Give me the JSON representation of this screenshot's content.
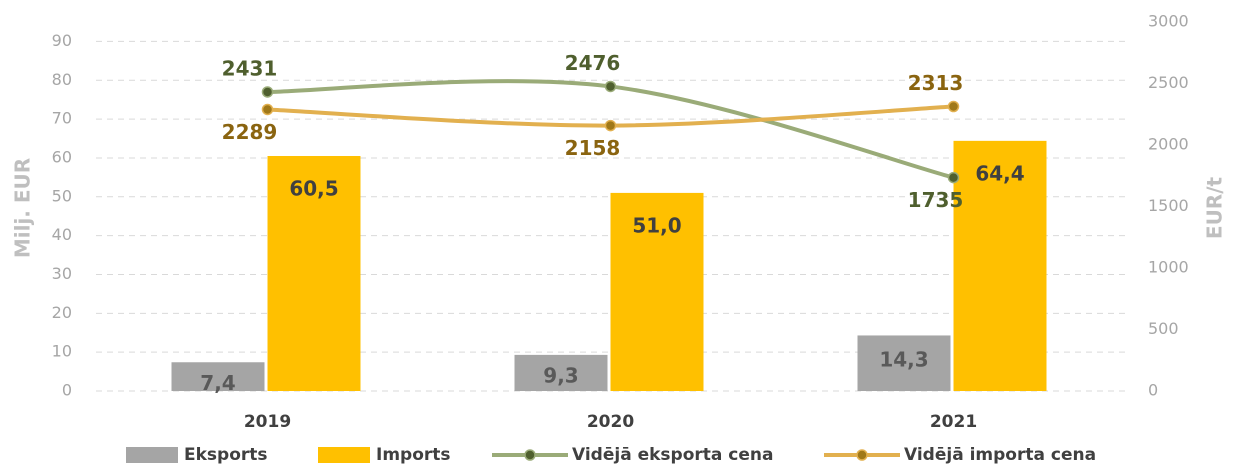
{
  "chart_data": {
    "type": "bar-line",
    "categories": [
      "2019",
      "2020",
      "2021"
    ],
    "ylabel": "Milj. EUR",
    "y2label": "EUR/t",
    "ylim": [
      0,
      95
    ],
    "yticks": [
      0,
      10,
      20,
      30,
      40,
      50,
      60,
      70,
      80,
      90
    ],
    "y2lim": [
      0,
      3000
    ],
    "y2ticks": [
      0,
      500,
      1000,
      1500,
      2000,
      2500,
      3000
    ],
    "grid": true,
    "series": [
      {
        "name": "Eksports",
        "kind": "bar",
        "color": "#a5a5a5",
        "label_color": "#595959",
        "values": [
          7.4,
          9.3,
          14.3
        ],
        "value_labels": [
          "7,4",
          "9,3",
          "14,3"
        ]
      },
      {
        "name": "Imports",
        "kind": "bar",
        "color": "#ffc000",
        "label_color": "#404040",
        "values": [
          60.5,
          51.0,
          64.4
        ],
        "value_labels": [
          "60,5",
          "51,0",
          "64,4"
        ]
      },
      {
        "name": "Vidējā eksporta cena",
        "kind": "line",
        "axis": "y2",
        "color": "#9aab78",
        "marker_color": "#4f5f2e",
        "label_color": "#4f5f2e",
        "values": [
          2431,
          2476,
          1735
        ]
      },
      {
        "name": "Vidējā importa cena",
        "kind": "line",
        "axis": "y2",
        "color": "#e2b04f",
        "marker_color": "#a07818",
        "label_color": "#8a6410",
        "values": [
          2289,
          2158,
          2313
        ]
      }
    ],
    "legend": "bottom"
  }
}
